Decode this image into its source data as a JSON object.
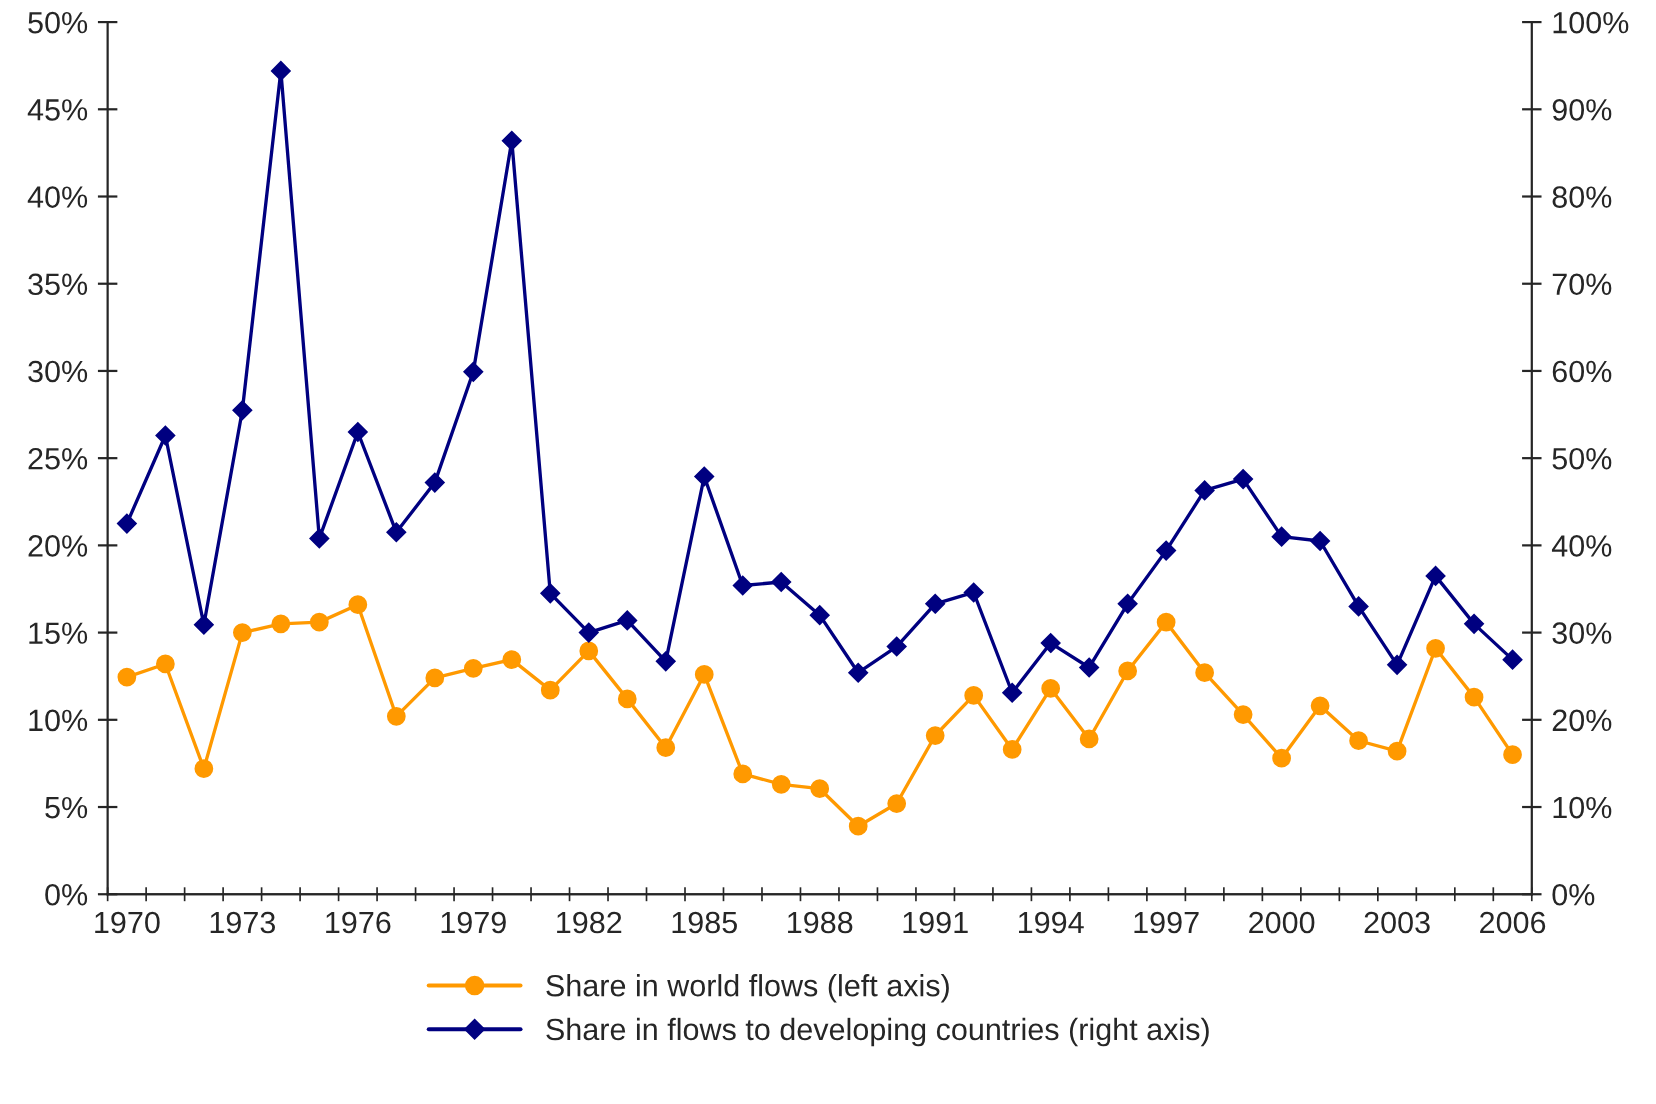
{
  "chart_data": {
    "type": "line",
    "categories": [
      "1970",
      null,
      null,
      "1973",
      null,
      null,
      "1976",
      null,
      null,
      "1979",
      null,
      null,
      "1982",
      null,
      null,
      "1985",
      null,
      null,
      "1988",
      null,
      null,
      "1991",
      null,
      null,
      "1994",
      null,
      null,
      "1997",
      null,
      null,
      "2000",
      null,
      null,
      "2003",
      null,
      null,
      "2006"
    ],
    "series": [
      {
        "name": "Share in world flows (left axis)",
        "color": "#ff9900",
        "marker": "circle",
        "values": [
          12.45,
          13.2,
          7.2,
          15.0,
          15.5,
          15.6,
          16.6,
          10.2,
          12.4,
          12.95,
          13.45,
          11.7,
          13.95,
          11.2,
          8.4,
          12.6,
          6.9,
          6.3,
          6.05,
          3.9,
          5.2,
          9.1,
          11.4,
          8.3,
          11.8,
          8.9,
          12.8,
          15.6,
          12.7,
          10.3,
          7.8,
          10.8,
          8.8,
          8.2,
          14.1,
          11.3,
          8.0
        ]
      },
      {
        "name": "Share in flows to developing countries (right axis)",
        "color": "#000080",
        "marker": "diamond",
        "axis": "y2",
        "values": [
          42.5,
          52.6,
          30.9,
          55.5,
          94.4,
          40.8,
          53.0,
          41.5,
          47.2,
          59.9,
          86.4,
          34.5,
          30.0,
          31.4,
          26.7,
          47.9,
          35.4,
          35.8,
          32.0,
          25.4,
          28.4,
          33.3,
          34.6,
          23.1,
          28.8,
          26.0,
          33.3,
          39.4,
          46.3,
          47.6,
          41.0,
          40.5,
          33.0,
          26.3,
          36.5,
          31.0,
          26.9
        ]
      }
    ],
    "ylim": [
      0,
      50
    ],
    "yticks": [
      {
        "value": 0,
        "label": "0%"
      },
      {
        "value": 5,
        "label": "5%"
      },
      {
        "value": 10,
        "label": "10%"
      },
      {
        "value": 15,
        "label": "15%"
      },
      {
        "value": 20,
        "label": "20%"
      },
      {
        "value": 25,
        "label": "25%"
      },
      {
        "value": 30,
        "label": "30%"
      },
      {
        "value": 35,
        "label": "35%"
      },
      {
        "value": 40,
        "label": "40%"
      },
      {
        "value": 45,
        "label": "45%"
      },
      {
        "value": 50,
        "label": "50%"
      }
    ],
    "y2lim": [
      0,
      100
    ],
    "y2ticks": [
      {
        "value": 0,
        "label": "0%"
      },
      {
        "value": 10,
        "label": "10%"
      },
      {
        "value": 20,
        "label": "20%"
      },
      {
        "value": 30,
        "label": "30%"
      },
      {
        "value": 40,
        "label": "40%"
      },
      {
        "value": 50,
        "label": "50%"
      },
      {
        "value": 60,
        "label": "60%"
      },
      {
        "value": 70,
        "label": "70%"
      },
      {
        "value": 80,
        "label": "80%"
      },
      {
        "value": 90,
        "label": "90%"
      },
      {
        "value": 100,
        "label": "100%"
      }
    ],
    "legend": "bottom",
    "line_style": "solid"
  }
}
